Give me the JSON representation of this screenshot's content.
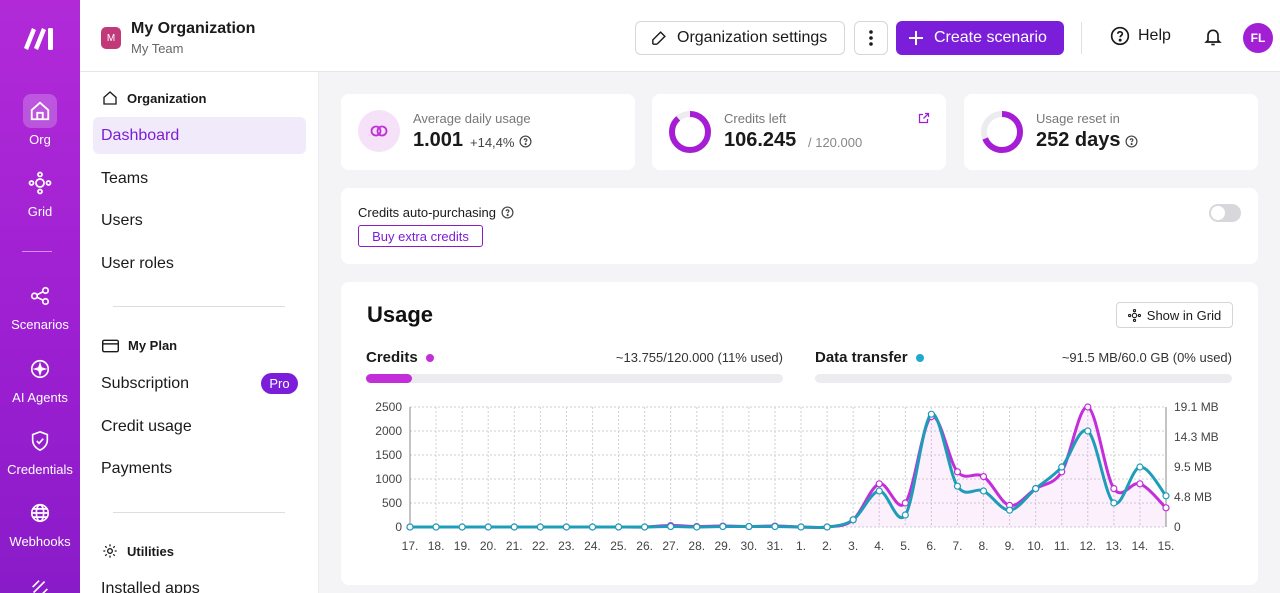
{
  "colors": {
    "brand": "#9b1fd1",
    "accent": "#7b1ed9",
    "credits_series": "#c22fd8",
    "transfer_series": "#1f9cb8"
  },
  "rail": {
    "items": [
      {
        "label": "Org",
        "icon": "home-icon"
      },
      {
        "label": "Grid",
        "icon": "grid-nodes-icon"
      },
      {
        "label": "Scenarios",
        "icon": "share-nodes-icon"
      },
      {
        "label": "AI Agents",
        "icon": "sparkle-icon"
      },
      {
        "label": "Credentials",
        "icon": "shield-check-icon"
      },
      {
        "label": "Webhooks",
        "icon": "globe-icon"
      }
    ]
  },
  "header": {
    "org_initial": "M",
    "org_name": "My Organization",
    "team_name": "My Team",
    "settings_label": "Organization settings",
    "create_label": "Create scenario",
    "help_label": "Help",
    "avatar_initials": "FL"
  },
  "sidebar": {
    "org_heading": "Organization",
    "org_links": [
      "Dashboard",
      "Teams",
      "Users",
      "User roles"
    ],
    "plan_heading": "My Plan",
    "plan_links": [
      "Subscription",
      "Credit usage",
      "Payments"
    ],
    "plan_badge": "Pro",
    "utilities_heading": "Utilities",
    "utilities_links": [
      "Installed apps"
    ]
  },
  "stats": {
    "avg": {
      "label": "Average daily usage",
      "value": "1.001",
      "change": "+14,4%"
    },
    "credits": {
      "label": "Credits left",
      "value": "106.245",
      "total": "/ 120.000",
      "fraction_left": 0.885
    },
    "reset": {
      "label": "Usage reset in",
      "value": "252 days",
      "fraction": 0.69
    }
  },
  "auto": {
    "label": "Credits auto-purchasing",
    "buy_label": "Buy extra credits",
    "enabled": false
  },
  "usage": {
    "title": "Usage",
    "grid_button": "Show in Grid",
    "credits_name": "Credits",
    "credits_value": "~13.755/120.000 (11% used)",
    "credits_fraction": 0.11,
    "transfer_name": "Data transfer",
    "transfer_value": "~91.5 MB/60.0 GB (0% used)",
    "transfer_fraction": 0.0
  },
  "chart_data": {
    "type": "line",
    "categories": [
      "17.",
      "18.",
      "19.",
      "20.",
      "21.",
      "22.",
      "23.",
      "24.",
      "25.",
      "26.",
      "27.",
      "28.",
      "29.",
      "30.",
      "31.",
      "1.",
      "2.",
      "3.",
      "4.",
      "5.",
      "6.",
      "7.",
      "8.",
      "9.",
      "10.",
      "11.",
      "12.",
      "13.",
      "14.",
      "15."
    ],
    "y_left_ticks": [
      "2500",
      "2000",
      "1500",
      "1000",
      "500",
      "0"
    ],
    "y_right_ticks": [
      "19.1 MB",
      "14.3 MB",
      "9.5 MB",
      "4.8 MB",
      "0"
    ],
    "ylim": [
      0,
      2500
    ],
    "grid": true,
    "series": [
      {
        "name": "Credits",
        "axis": "left",
        "color": "#c22fd8",
        "values": [
          0,
          0,
          0,
          0,
          0,
          0,
          0,
          0,
          0,
          0,
          30,
          10,
          20,
          10,
          20,
          0,
          0,
          150,
          900,
          500,
          2300,
          1150,
          1050,
          450,
          800,
          1150,
          2500,
          800,
          900,
          400
        ]
      },
      {
        "name": "Data transfer",
        "axis": "left",
        "color": "#1f9cb8",
        "values": [
          0,
          0,
          0,
          0,
          0,
          0,
          0,
          0,
          0,
          0,
          10,
          0,
          10,
          10,
          10,
          0,
          0,
          150,
          750,
          250,
          2350,
          850,
          750,
          350,
          800,
          1250,
          2000,
          500,
          1250,
          650
        ]
      }
    ]
  }
}
